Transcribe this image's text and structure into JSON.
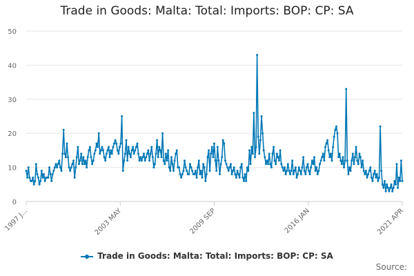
{
  "chart_data": {
    "type": "line",
    "title": "Trade in Goods: Malta: Total: Imports: BOP: CP: SA",
    "xlabel": "",
    "ylabel": "",
    "ylim": [
      0,
      50
    ],
    "yticks": [
      0,
      10,
      20,
      30,
      40,
      50
    ],
    "xtick_labels": [
      "1997 J...",
      "2003 MAY",
      "2009 SEP",
      "2016 JAN",
      "2021 APR"
    ],
    "series": [
      {
        "name": "Trade in Goods: Malta: Total: Imports: BOP: CP: SA",
        "color": "#0077b5",
        "values": [
          9,
          7,
          10,
          7,
          6,
          6,
          7,
          5,
          6,
          11,
          8,
          7,
          5,
          6,
          9,
          7,
          8,
          6,
          7,
          7,
          7,
          10,
          8,
          6,
          8,
          9,
          10,
          11,
          10,
          11,
          12,
          10,
          9,
          14,
          21,
          14,
          13,
          17,
          13,
          10,
          9,
          10,
          11,
          12,
          7,
          10,
          13,
          16,
          11,
          12,
          14,
          11,
          13,
          11,
          12,
          10,
          13,
          15,
          16,
          13,
          11,
          12,
          14,
          15,
          17,
          16,
          20,
          14,
          15,
          16,
          15,
          13,
          12,
          14,
          15,
          16,
          13,
          15,
          14,
          16,
          17,
          18,
          17,
          15,
          14,
          16,
          17,
          25,
          9,
          12,
          14,
          18,
          12,
          16,
          14,
          13,
          15,
          16,
          14,
          15,
          16,
          17,
          14,
          12,
          13,
          12,
          13,
          14,
          12,
          13,
          14,
          15,
          12,
          14,
          16,
          13,
          10,
          11,
          14,
          18,
          13,
          16,
          15,
          13,
          20,
          12,
          11,
          14,
          12,
          15,
          10,
          9,
          13,
          11,
          9,
          12,
          14,
          15,
          10,
          10,
          8,
          7,
          8,
          9,
          12,
          10,
          9,
          8,
          8,
          11,
          10,
          9,
          8,
          8,
          9,
          7,
          10,
          12,
          8,
          9,
          7,
          11,
          10,
          6,
          8,
          13,
          15,
          9,
          14,
          16,
          13,
          17,
          12,
          9,
          16,
          12,
          8,
          11,
          13,
          18,
          17,
          12,
          11,
          10,
          9,
          10,
          11,
          8,
          9,
          10,
          8,
          7,
          9,
          8,
          7,
          10,
          11,
          7,
          6,
          8,
          6,
          10,
          9,
          15,
          11,
          16,
          14,
          26,
          13,
          16,
          43,
          19,
          14,
          18,
          25,
          20,
          15,
          13,
          11,
          12,
          11,
          14,
          11,
          10,
          14,
          16,
          12,
          11,
          14,
          13,
          12,
          15,
          11,
          10,
          9,
          10,
          8,
          9,
          11,
          9,
          8,
          9,
          12,
          8,
          9,
          10,
          7,
          8,
          10,
          9,
          8,
          10,
          13,
          9,
          8,
          10,
          11,
          9,
          8,
          10,
          12,
          11,
          13,
          9,
          10,
          8,
          9,
          11,
          12,
          13,
          14,
          12,
          16,
          17,
          18,
          15,
          13,
          14,
          12,
          16,
          19,
          21,
          22,
          20,
          13,
          14,
          12,
          11,
          13,
          10,
          12,
          33,
          12,
          8,
          10,
          9,
          12,
          14,
          11,
          13,
          16,
          12,
          11,
          14,
          13,
          10,
          12,
          9,
          8,
          9,
          7,
          8,
          9,
          10,
          7,
          6,
          8,
          9,
          7,
          8,
          6,
          7,
          22,
          9,
          5,
          4,
          6,
          3,
          5,
          4,
          3,
          4,
          5,
          3,
          4,
          6,
          5,
          11,
          4,
          7,
          6,
          12,
          6
        ]
      }
    ]
  },
  "legend": {
    "label": "Trade in Goods: Malta: Total: Imports: BOP: CP: SA"
  },
  "source_label": "Source:"
}
